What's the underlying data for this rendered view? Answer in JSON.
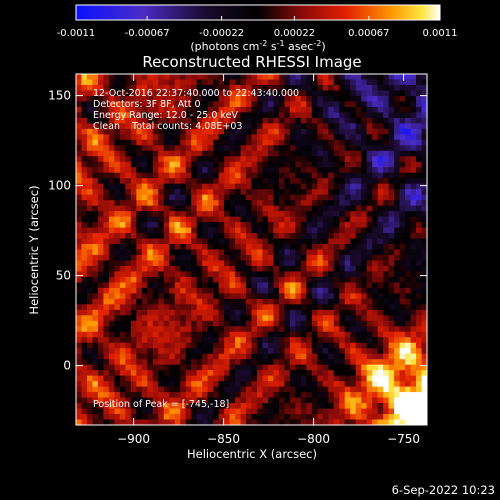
{
  "colorbar": {
    "min": -0.0011,
    "max": 0.0011,
    "tick_labels": [
      "-0.0011",
      "-0.00067",
      "-0.00022",
      "0.00022",
      "0.00067",
      "0.0011"
    ],
    "tick_values": [
      -0.0011,
      -0.00067,
      -0.00022,
      0.00022,
      0.00067,
      0.0011
    ],
    "unit_main": "(photons cm",
    "unit_exp1": "-2",
    "unit_mid": " s",
    "unit_exp2": "-1",
    "unit_end": " asec",
    "unit_exp3": "-2",
    "unit_close": ")"
  },
  "chart_data": {
    "type": "heatmap",
    "title": "Reconstructed RHESSI Image",
    "xlabel": "Heliocentric X (arcsec)",
    "ylabel": "Heliocentric Y (arcsec)",
    "xlim": [
      -932,
      -737
    ],
    "ylim": [
      -33,
      162
    ],
    "x_ticks": [
      -900,
      -850,
      -800,
      -750
    ],
    "x_tick_labels": [
      "−900",
      "−850",
      "−800",
      "−750"
    ],
    "y_ticks": [
      0,
      50,
      100,
      150
    ],
    "y_tick_labels": [
      "0",
      "50",
      "100",
      "150"
    ],
    "colormap": "blue-black-red-yellow-white",
    "peak_position": [
      -745,
      -18
    ],
    "annotations": [
      "12-Oct-2016 22:37:40.000 to 22:43:40.000",
      "Detectors: 3F 8F, Att 0",
      "Energy Range: 12.0 - 25.0 keV",
      "Clean    Total counts: 4.08E+03",
      "Position of Peak = [-745,-18]"
    ]
  },
  "footer": {
    "date": "6-Sep-2022 10:23"
  }
}
